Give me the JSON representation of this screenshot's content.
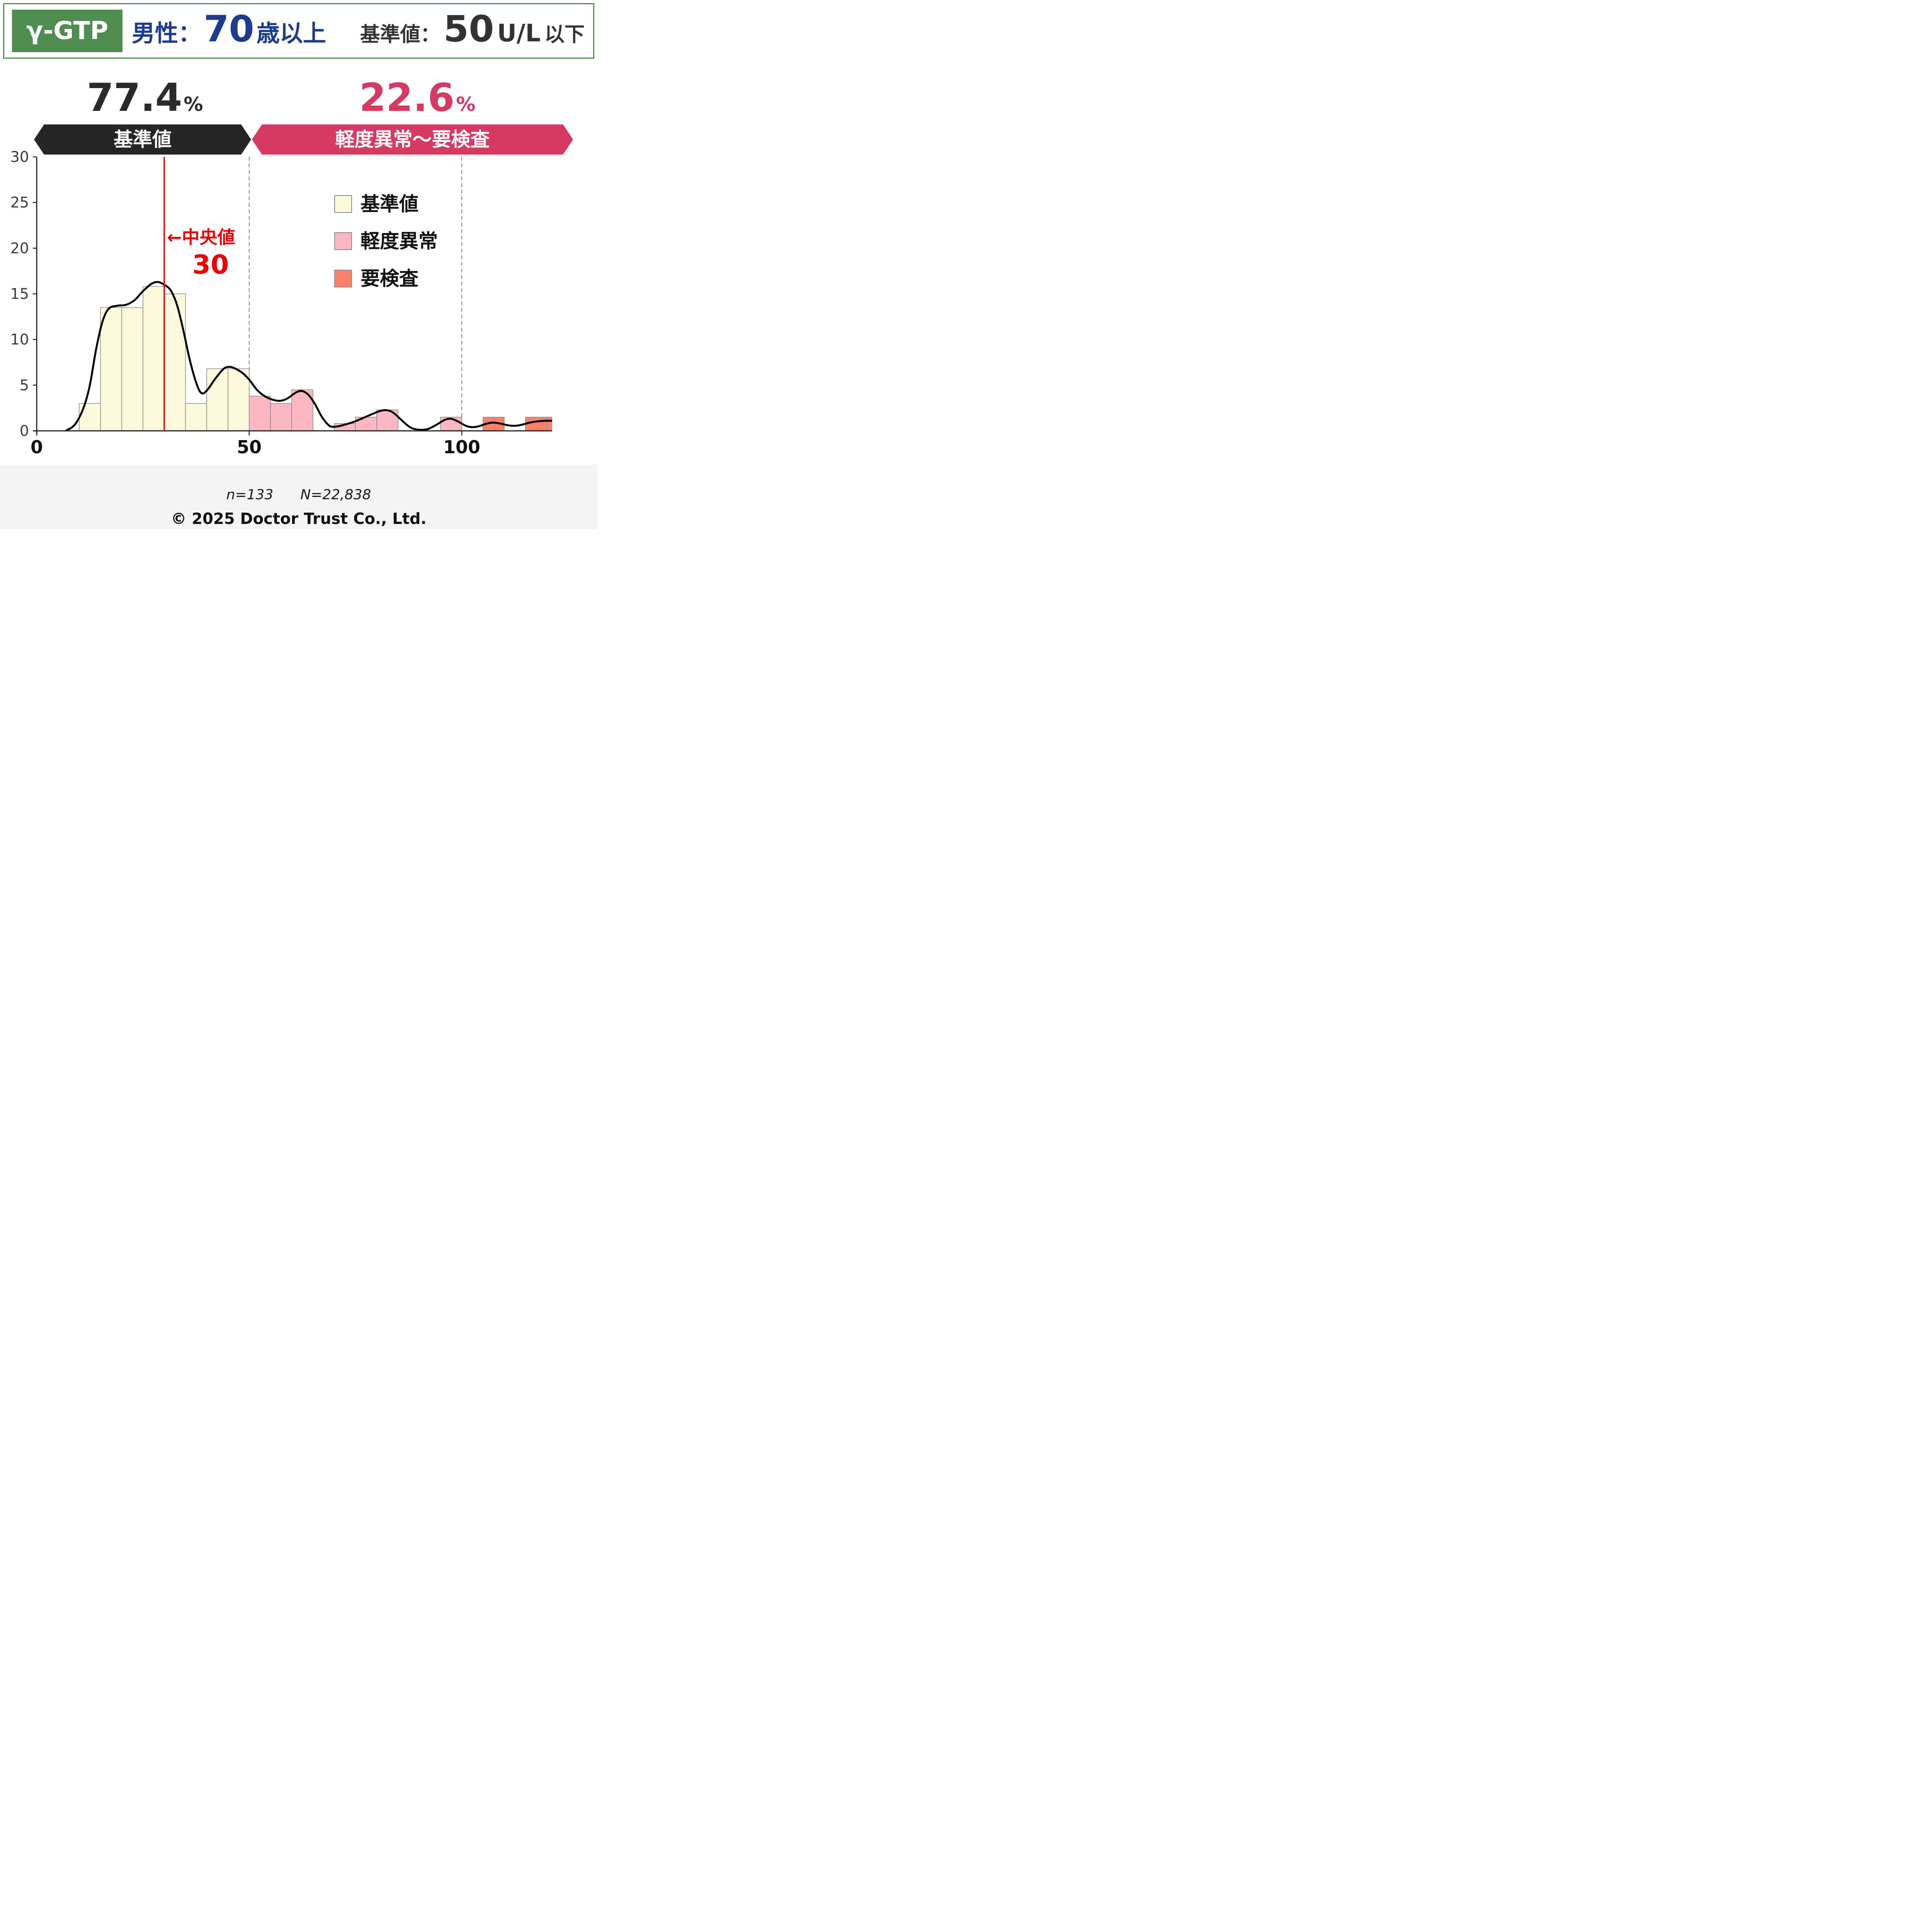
{
  "header": {
    "test_name": "γ-GTP",
    "subject_prefix": "男性：",
    "subject_age": "70",
    "subject_suffix": "歳以上",
    "ref_label": "基準値：",
    "ref_value": "50",
    "ref_unit": "U/L",
    "ref_suffix": "以下"
  },
  "summary": {
    "normal_pct": "77.4",
    "abnormal_pct": "22.6",
    "pct_sign": "%",
    "normal_band_label": "基準値",
    "abnormal_band_label": "軽度異常〜要検査"
  },
  "legend": {
    "items": [
      {
        "label": "基準値",
        "color": "#FCFADC",
        "category": "normal"
      },
      {
        "label": "軽度異常",
        "color": "#FBB7C4",
        "category": "mild"
      },
      {
        "label": "要検査",
        "color": "#F8826C",
        "category": "exam"
      }
    ]
  },
  "median": {
    "arrow_label": "←中央値",
    "value_label": "30"
  },
  "footer": {
    "sample_size": "n=133",
    "population": "N=22,838",
    "copyright": "© 2025 Doctor Trust Co., Ltd."
  },
  "colors": {
    "header_green": "#4E8C50",
    "header_blue": "#1C3B8E",
    "header_dark": "#333333",
    "normal_black": "#2B2B2B",
    "abnormal_crimson": "#D63A63",
    "banner_black": "#262626",
    "normal_fill": "#FCFADC",
    "mild_fill": "#FBB7C4",
    "exam_fill": "#F8826C",
    "bar_stroke": "#8C8C8C",
    "curve": "#000000",
    "median_red": "#EE0000",
    "gridline": "#888888",
    "axis": "#222222",
    "tick_label": "#3B3B3B",
    "x_label": "#111111",
    "footer_bg": "#F4F4F4"
  },
  "chart_data": {
    "type": "histogram",
    "title": "γ-GTP distribution, males 70+ (percent of n)",
    "xlabel": "",
    "ylabel": "",
    "xlim": [
      0,
      121.5
    ],
    "ylim": [
      0,
      30
    ],
    "xticks": [
      0,
      50,
      100
    ],
    "yticks": [
      0,
      5,
      10,
      15,
      20,
      25,
      30
    ],
    "gridlines_x": [
      50,
      100
    ],
    "median_x": 30,
    "bin_width": 5,
    "bins": [
      {
        "range": [
          10,
          15
        ],
        "value": 3.0,
        "category": "normal"
      },
      {
        "range": [
          15,
          20
        ],
        "value": 13.5,
        "category": "normal"
      },
      {
        "range": [
          20,
          25
        ],
        "value": 13.5,
        "category": "normal"
      },
      {
        "range": [
          25,
          30
        ],
        "value": 15.8,
        "category": "normal"
      },
      {
        "range": [
          30,
          35
        ],
        "value": 15.0,
        "category": "normal"
      },
      {
        "range": [
          35,
          40
        ],
        "value": 3.0,
        "category": "normal"
      },
      {
        "range": [
          40,
          45
        ],
        "value": 6.8,
        "category": "normal"
      },
      {
        "range": [
          45,
          50
        ],
        "value": 6.8,
        "category": "normal"
      },
      {
        "range": [
          50,
          55
        ],
        "value": 3.8,
        "category": "mild"
      },
      {
        "range": [
          55,
          60
        ],
        "value": 3.0,
        "category": "mild"
      },
      {
        "range": [
          60,
          65
        ],
        "value": 4.5,
        "category": "mild"
      },
      {
        "range": [
          70,
          75
        ],
        "value": 0.8,
        "category": "mild"
      },
      {
        "range": [
          75,
          80
        ],
        "value": 1.5,
        "category": "mild"
      },
      {
        "range": [
          80,
          85
        ],
        "value": 2.3,
        "category": "mild"
      },
      {
        "range": [
          95,
          100
        ],
        "value": 1.5,
        "category": "mild"
      },
      {
        "range": [
          105,
          110
        ],
        "value": 1.5,
        "category": "exam"
      },
      {
        "range": [
          115,
          120
        ],
        "value": 1.5,
        "category": "exam"
      },
      {
        "range": [
          120,
          125
        ],
        "value": 1.5,
        "category": "exam"
      }
    ],
    "kde_points": [
      [
        7,
        0.05
      ],
      [
        9,
        0.7
      ],
      [
        11,
        2.5
      ],
      [
        12.5,
        5
      ],
      [
        14,
        9
      ],
      [
        15.5,
        12
      ],
      [
        17,
        13.4
      ],
      [
        19,
        13.7
      ],
      [
        21,
        13.8
      ],
      [
        23,
        14.3
      ],
      [
        25,
        15.3
      ],
      [
        27,
        16.1
      ],
      [
        28.5,
        16.3
      ],
      [
        30,
        16.0
      ],
      [
        31.5,
        15.4
      ],
      [
        33,
        13.8
      ],
      [
        34.5,
        11
      ],
      [
        36,
        7.8
      ],
      [
        37.5,
        5.3
      ],
      [
        38.7,
        4.15
      ],
      [
        40,
        4.4
      ],
      [
        42,
        5.7
      ],
      [
        44,
        6.8
      ],
      [
        45.5,
        7.0
      ],
      [
        47,
        6.75
      ],
      [
        48.5,
        6.3
      ],
      [
        50,
        5.6
      ],
      [
        52,
        4.4
      ],
      [
        54,
        3.7
      ],
      [
        56,
        3.35
      ],
      [
        57.5,
        3.3
      ],
      [
        59,
        3.55
      ],
      [
        61,
        4.2
      ],
      [
        62.5,
        4.35
      ],
      [
        64,
        3.9
      ],
      [
        65.5,
        2.9
      ],
      [
        67,
        1.6
      ],
      [
        68.5,
        0.7
      ],
      [
        69.5,
        0.45
      ],
      [
        71,
        0.5
      ],
      [
        73,
        0.75
      ],
      [
        75,
        1.05
      ],
      [
        77,
        1.45
      ],
      [
        79,
        1.85
      ],
      [
        81,
        2.2
      ],
      [
        82.5,
        2.25
      ],
      [
        84,
        1.95
      ],
      [
        86,
        1.1
      ],
      [
        88,
        0.35
      ],
      [
        90,
        0.12
      ],
      [
        92,
        0.2
      ],
      [
        94,
        0.65
      ],
      [
        96,
        1.2
      ],
      [
        97.5,
        1.32
      ],
      [
        99,
        1.05
      ],
      [
        101,
        0.55
      ],
      [
        102.5,
        0.4
      ],
      [
        104,
        0.5
      ],
      [
        106,
        0.8
      ],
      [
        107.5,
        0.9
      ],
      [
        109,
        0.8
      ],
      [
        111,
        0.6
      ],
      [
        112.5,
        0.55
      ],
      [
        114,
        0.65
      ],
      [
        116,
        0.9
      ],
      [
        118,
        1.05
      ],
      [
        120,
        1.1
      ],
      [
        121.5,
        1.1
      ]
    ]
  }
}
